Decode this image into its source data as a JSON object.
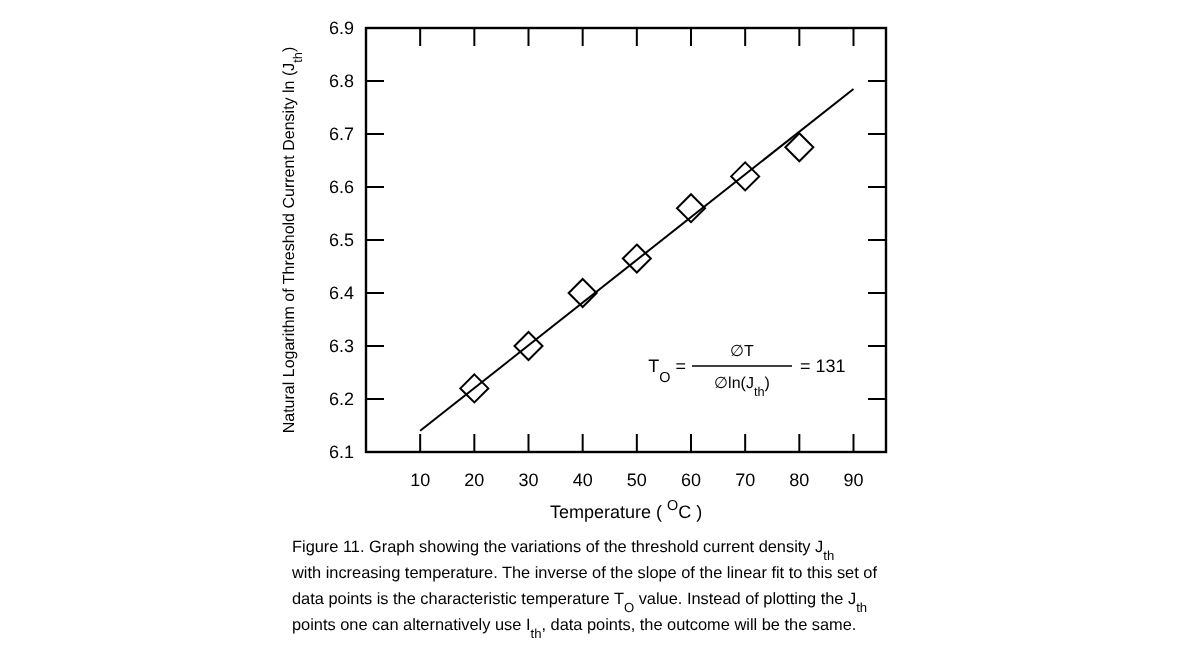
{
  "chart_data": {
    "type": "scatter",
    "xlabel": "Temperature ( $^{O}$C )",
    "ylabel": "Natural Logarithm of Threshold Current Density ln (J$_{th}$)",
    "xlim": [
      0,
      96
    ],
    "xticks": [
      10,
      20,
      30,
      40,
      50,
      60,
      70,
      80,
      90
    ],
    "ylim": [
      6.1,
      6.9
    ],
    "yticks": [
      6.1,
      6.2,
      6.3,
      6.4,
      6.5,
      6.6,
      6.7,
      6.8,
      6.9
    ],
    "grid": false,
    "series": [
      {
        "color": "#000000",
        "marker": "diamond",
        "x": [
          20,
          30,
          40,
          50,
          60,
          70,
          80
        ],
        "values": [
          6.22,
          6.3,
          6.4,
          6.465,
          6.56,
          6.62,
          6.675
        ]
      },
      {
        "type": "line",
        "color": "#000000",
        "marker": "none",
        "line_style": "solid",
        "x": [
          10,
          90
        ],
        "values": [
          6.14,
          6.785
        ]
      }
    ],
    "annotations": [
      "T$_{O}$ =",
      "∅T",
      "∅ln(J$_{th}$)",
      "= 131",
      "Figure 11. Graph showing the variations of the threshold current density J$_{th}$",
      "with increasing temperature. The inverse of the slope of the linear fit to this set of",
      "data points is the characteristic temperature T$_{O}$ value. Instead of plotting the J$_{th}$",
      "points one can alternatively use I$_{th}$, data points, the outcome will be the same."
    ]
  }
}
